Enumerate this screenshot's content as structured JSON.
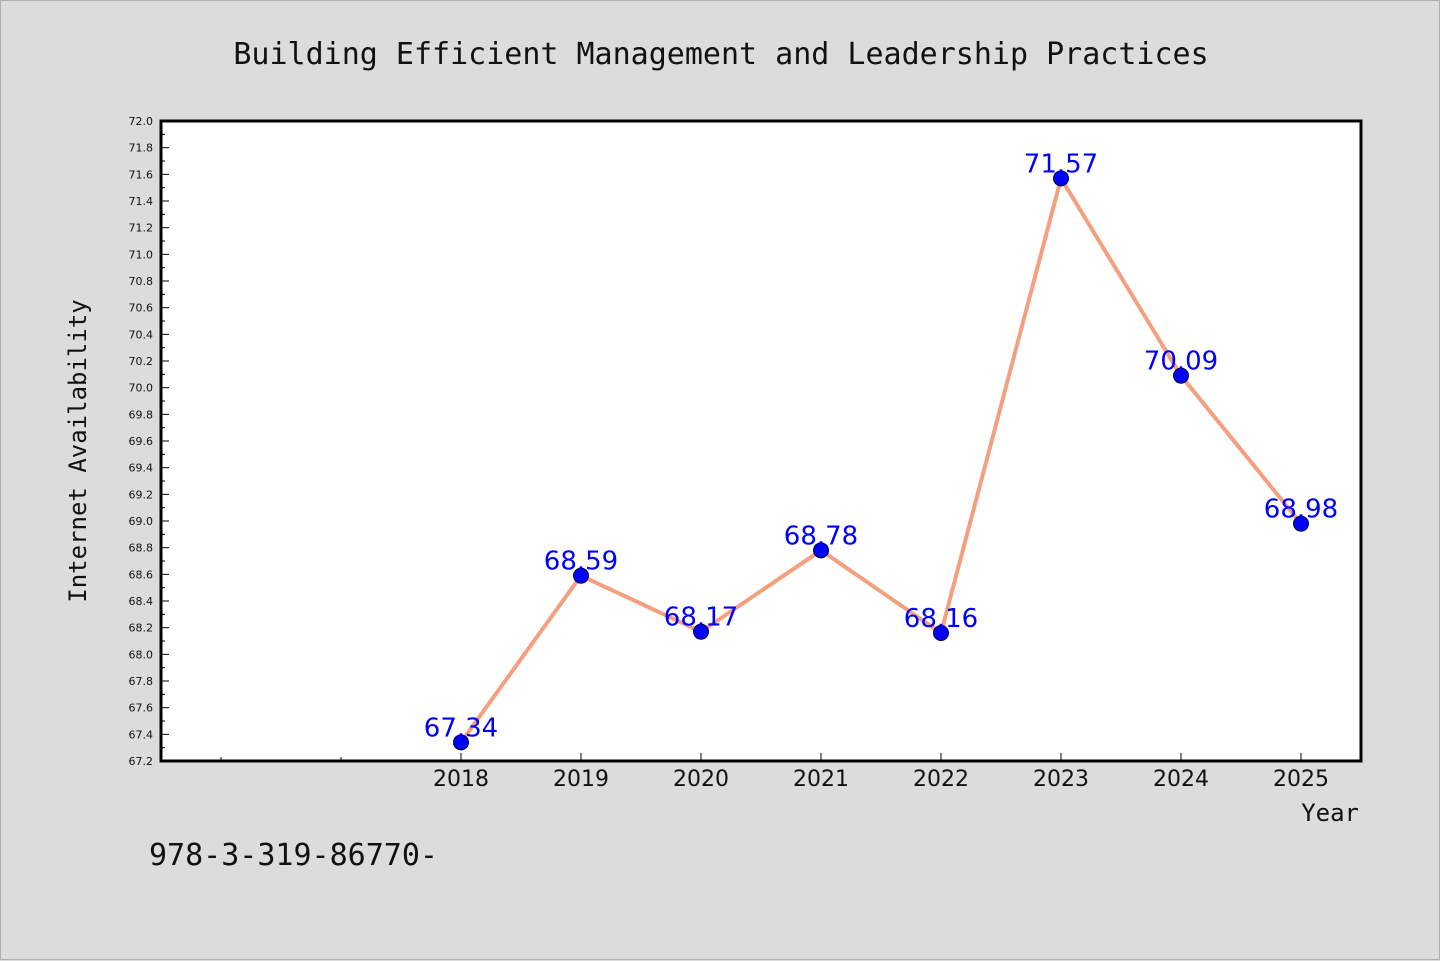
{
  "chart_data": {
    "type": "line",
    "title": "Building Efficient Management and Leadership Practices",
    "xlabel": "Year",
    "ylabel": "Internet Availability",
    "categories": [
      "2018",
      "2019",
      "2020",
      "2021",
      "2022",
      "2023",
      "2024",
      "2025"
    ],
    "values": [
      67.34,
      68.59,
      68.17,
      68.78,
      68.16,
      71.57,
      70.09,
      68.98
    ],
    "data_labels": [
      "67.34",
      "68.59",
      "68.17",
      "68.78",
      "68.16",
      "71.57",
      "70.09",
      "68.98"
    ],
    "ylim": [
      67.2,
      72.0
    ],
    "yticks": [
      "67.2",
      "67.4",
      "67.6",
      "67.8",
      "68.0",
      "68.2",
      "68.4",
      "68.6",
      "68.8",
      "69.0",
      "69.2",
      "69.4",
      "69.6",
      "69.8",
      "70.0",
      "70.2",
      "70.4",
      "70.6",
      "70.8",
      "71.0",
      "71.2",
      "71.4",
      "71.6",
      "71.8",
      "72.0"
    ],
    "grid": false,
    "legend": "none",
    "colors": {
      "line": "#f4a07f",
      "marker": "#0000ff",
      "label": "#0000ff",
      "background": "#dcdcdc",
      "plot_background": "#ffffff"
    }
  },
  "footer_text": "978-3-319-86770-"
}
